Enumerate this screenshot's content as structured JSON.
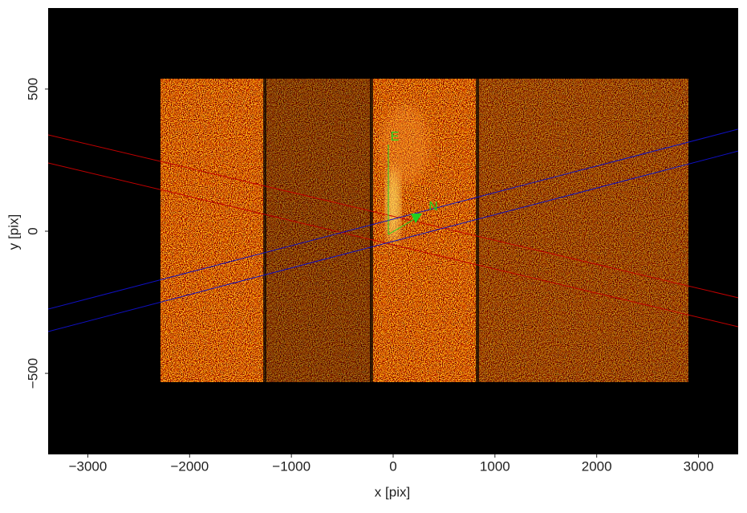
{
  "chart_data": {
    "type": "image",
    "xlabel": "x [pix]",
    "ylabel": "y [pix]",
    "xlim": [
      -3390,
      3390
    ],
    "ylim": [
      -785,
      785
    ],
    "xticks": [
      {
        "value": -3000,
        "label": "−3000"
      },
      {
        "value": -2000,
        "label": "−2000"
      },
      {
        "value": -1000,
        "label": "−1000"
      },
      0,
      1000,
      2000,
      3000
    ],
    "yticks": [
      {
        "value": -500,
        "label": "−500"
      },
      0,
      500
    ],
    "lines": [
      {
        "color": "#c00000",
        "x": [
          -3390,
          3390
        ],
        "values": [
          339,
          -234
        ]
      },
      {
        "color": "#c00000",
        "x": [
          -3390,
          3390
        ],
        "values": [
          240,
          -336
        ]
      },
      {
        "color": "#1010c0",
        "x": [
          -3390,
          3390
        ],
        "values": [
          -274,
          359
        ]
      },
      {
        "color": "#1010c0",
        "x": [
          -3390,
          3390
        ],
        "values": [
          -353,
          282
        ]
      }
    ],
    "compass": {
      "east": "E",
      "north": "N"
    }
  }
}
